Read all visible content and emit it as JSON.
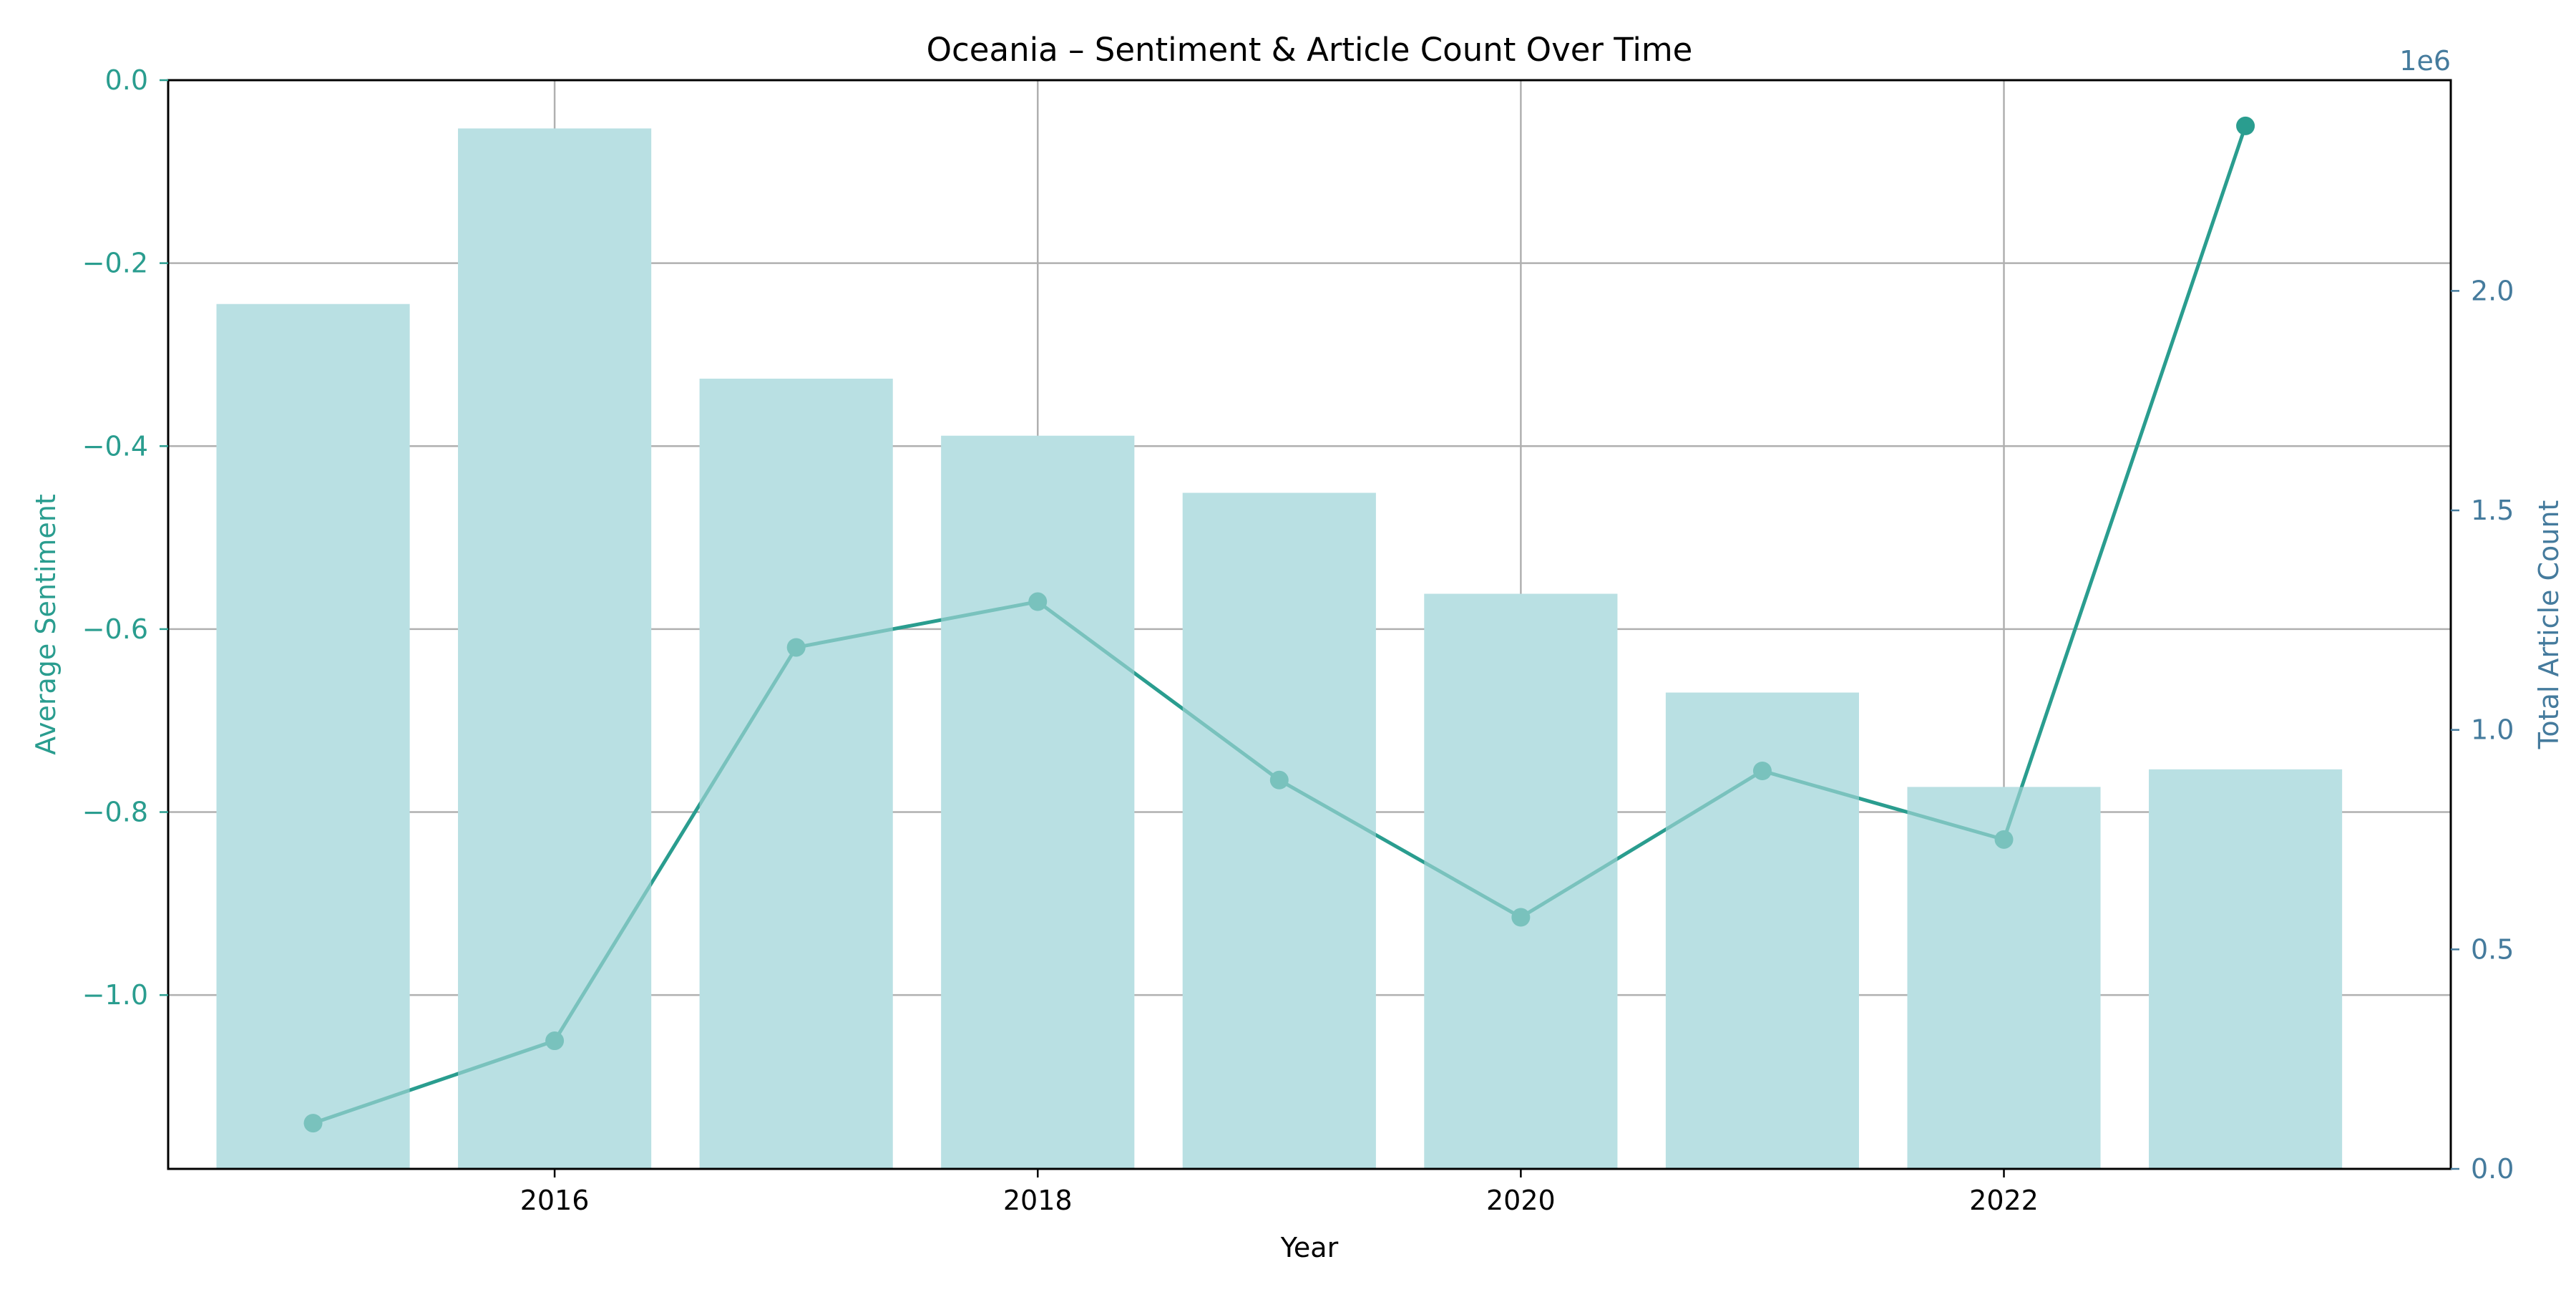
{
  "chart_data": {
    "type": "bar",
    "title": "Oceania – Sentiment & Article Count Over Time",
    "xlabel": "Year",
    "x": [
      2015,
      2016,
      2017,
      2018,
      2019,
      2020,
      2021,
      2022,
      2023
    ],
    "x_ticks": [
      "2016",
      "2018",
      "2020",
      "2022"
    ],
    "x_tick_values": [
      2016,
      2018,
      2020,
      2022
    ],
    "xlim": [
      2014.4,
      2023.85
    ],
    "grid": true,
    "series": [
      {
        "kind": "bar",
        "axis": "right",
        "values": [
          1970000,
          2370000,
          1800000,
          1670000,
          1540000,
          1310000,
          1085000,
          870000,
          910000
        ]
      },
      {
        "kind": "line",
        "axis": "left",
        "values": [
          -1.14,
          -1.05,
          -0.62,
          -0.57,
          -0.765,
          -0.915,
          -0.755,
          -0.83,
          -0.05
        ]
      }
    ],
    "y_left": {
      "label": "Average Sentiment",
      "ylim": [
        -1.19,
        0.0
      ],
      "ticks": [
        "0.0",
        "−0.2",
        "−0.4",
        "−0.6",
        "−0.8",
        "−1.0"
      ],
      "tick_values": [
        0.0,
        -0.2,
        -0.4,
        -0.6,
        -0.8,
        -1.0
      ]
    },
    "y_right": {
      "label": "Total Article Count",
      "offset_text": "1e6",
      "ylim": [
        0,
        2480000
      ],
      "ticks": [
        "0.0",
        "0.5",
        "1.0",
        "1.5",
        "2.0"
      ],
      "tick_values": [
        0,
        500000,
        1000000,
        1500000,
        2000000
      ]
    },
    "colors": {
      "bar": "#b9e0e3",
      "line": "#2a9d8f",
      "left_axis": "#2a9d8f",
      "right_axis": "#457b9d",
      "grid": "#b0b0b0"
    }
  }
}
